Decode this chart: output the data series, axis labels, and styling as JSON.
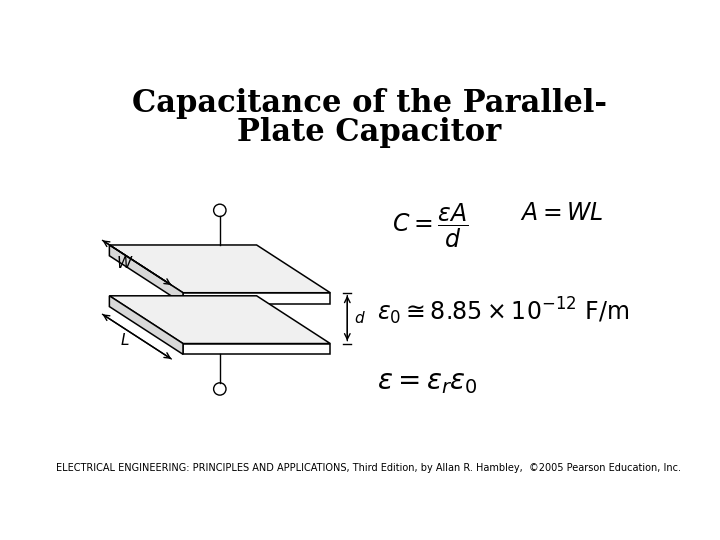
{
  "title_line1": "Capacitance of the Parallel-",
  "title_line2": "Plate Capacitor",
  "footer": "ELECTRICAL ENGINEERING: PRINCIPLES AND APPLICATIONS, Third Edition, by Allan R. Hambley,  ©2005 Pearson Education, Inc.",
  "bg_color": "#ffffff",
  "title_fontsize": 22,
  "footer_fontsize": 7.0,
  "plate_color_top": "#f0f0f0",
  "plate_color_side": "#d8d8d8",
  "plate_color_front": "#ffffff",
  "edge_color": "#000000",
  "edge_lw": 1.1
}
